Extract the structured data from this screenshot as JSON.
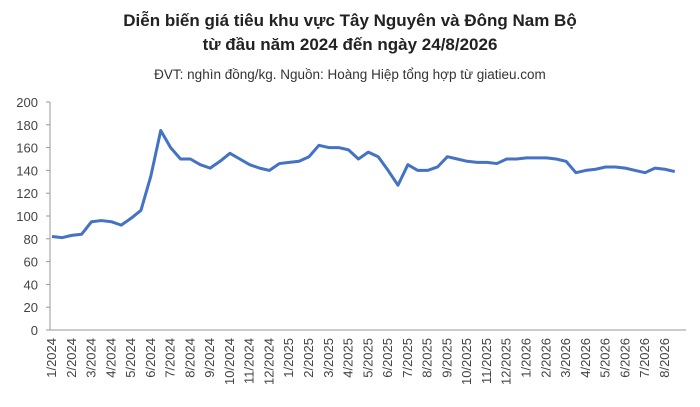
{
  "chart_data": {
    "type": "line",
    "title": "Diễn biến giá tiêu khu vực Tây Nguyên và Đông Nam Bộ",
    "subtitle": "từ đầu năm 2024 đến ngày 24/8/2026",
    "note": "ĐVT: nghìn đồng/kg. Nguồn: Hoàng Hiệp tổng hợp từ giatieu.com",
    "categories": [
      "1/2024",
      null,
      "2/2024",
      null,
      "3/2024",
      null,
      "4/2024",
      null,
      "5/2024",
      null,
      "6/2024",
      null,
      "7/2024",
      null,
      "8/2024",
      null,
      "9/2024",
      null,
      "10/2024",
      null,
      "11/2024",
      null,
      "12/2024",
      null,
      "1/2025",
      null,
      "2/2025",
      null,
      "3/2025",
      null,
      "4/2025",
      null,
      "5/2025",
      null,
      "6/2025",
      null,
      "7/2025",
      null,
      "8/2025",
      null,
      "9/2025",
      null,
      "10/2025",
      null,
      "11/2025",
      null,
      "12/2025",
      null,
      "1/2026",
      null,
      "2/2026",
      null,
      "3/2026",
      null,
      "4/2026",
      null,
      "5/2026",
      null,
      "6/2026",
      null,
      "7/2026",
      null,
      "8/2026",
      null
    ],
    "series": [
      {
        "color": "#4472c4",
        "values": [
          82,
          81,
          83,
          84,
          95,
          96,
          95,
          92,
          98,
          105,
          135,
          175,
          160,
          150,
          150,
          145,
          142,
          148,
          155,
          150,
          145,
          142,
          140,
          146,
          147,
          148,
          152,
          162,
          160,
          160,
          158,
          150,
          156,
          152,
          140,
          127,
          145,
          140,
          140,
          143,
          152,
          150,
          148,
          147,
          147,
          146,
          150,
          150,
          151,
          151,
          151,
          150,
          148,
          138,
          140,
          141,
          143,
          143,
          142,
          140,
          138,
          142,
          141,
          139
        ]
      }
    ],
    "ylim": [
      0,
      200
    ],
    "yticks": [
      0,
      20,
      40,
      60,
      80,
      100,
      120,
      140,
      160,
      180,
      200
    ]
  }
}
